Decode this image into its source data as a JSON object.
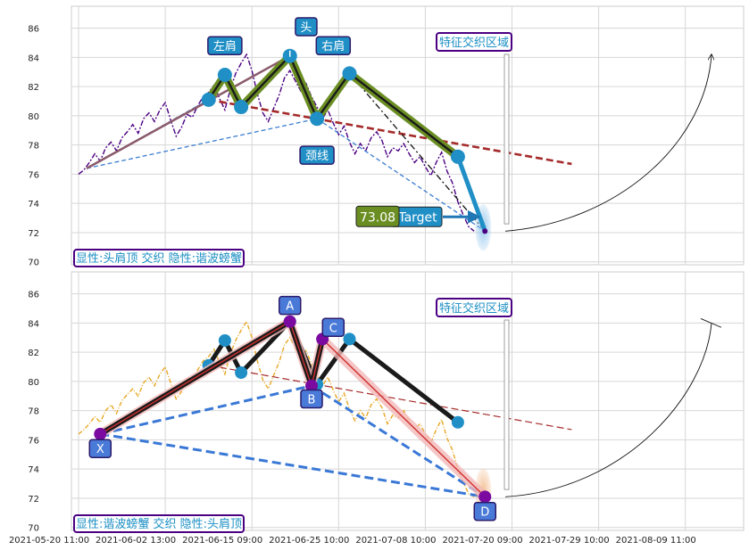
{
  "chart_data": {
    "type": "line",
    "x_ticks": [
      "2021-05-20 11:00",
      "2021-06-02 13:00",
      "2021-06-15 09:00",
      "2021-06-25 10:00",
      "2021-07-08 10:00",
      "2021-07-20 09:00",
      "2021-07-29 10:00",
      "2021-08-09 11:00"
    ],
    "y_ticks": [
      70,
      72,
      74,
      76,
      78,
      80,
      82,
      84,
      86
    ],
    "ylim": [
      69.8,
      87.5
    ],
    "grid": true,
    "panels": [
      {
        "price_color": "#4b0082",
        "price": [
          76,
          76.3,
          76.8,
          77.4,
          76.9,
          77.8,
          78.2,
          77.6,
          78.5,
          78.9,
          79.4,
          78.8,
          79.8,
          80.2,
          79.6,
          80.4,
          80.9,
          79.7,
          78.6,
          79.2,
          80.1,
          79.9,
          80.7,
          81.3,
          81.6,
          82.1,
          81.2,
          80.4,
          81.8,
          82.9,
          83.6,
          84.2,
          83.1,
          81.5,
          80.2,
          79.6,
          80.5,
          81.4,
          82.6,
          83.1,
          82.4,
          81.7,
          82.2,
          81.3,
          80.6,
          79.8,
          80.4,
          79.5,
          78.7,
          79.3,
          78.2,
          77.4,
          78.1,
          77.6,
          78.5,
          78.9,
          78.3,
          77.2,
          77.8,
          77.6,
          78.1,
          77.4,
          76.8,
          77.2,
          76.5,
          75.9,
          76.8,
          77.5,
          76.2,
          75.4,
          74.1,
          73.2,
          72.4,
          72.1
        ],
        "pattern_points": [
          [
            24,
            81.1
          ],
          [
            27,
            82.8
          ],
          [
            30,
            80.6
          ],
          [
            39,
            84.1
          ],
          [
            44,
            79.8
          ],
          [
            50,
            82.9
          ],
          [
            70,
            77.2
          ],
          [
            75,
            72.1
          ]
        ],
        "pattern_labels": [
          {
            "text": "左肩",
            "x": 27,
            "y": 84.8
          },
          {
            "text": "头",
            "x": 42,
            "y": 86.1
          },
          {
            "text": "右肩",
            "x": 47,
            "y": 84.8
          },
          {
            "text": "颈线",
            "x": 44,
            "y": 77.3
          }
        ],
        "neckline": {
          "x": [
            24,
            91
          ],
          "y": [
            81.1,
            76.7
          ]
        },
        "target_value": "73.08",
        "target_label": "Target",
        "zone_label": "特征交织区域",
        "description": "显性:头肩顶 交织 隐性:谐波螃蟹"
      },
      {
        "price_color": "#e8a825",
        "price": [
          76.4,
          76.7,
          77.1,
          77.6,
          77.2,
          78.0,
          78.4,
          77.8,
          78.7,
          79.1,
          79.5,
          79.0,
          79.9,
          80.3,
          79.7,
          80.5,
          81.0,
          79.9,
          78.8,
          79.3,
          80.2,
          80.0,
          80.8,
          81.4,
          81.7,
          82.2,
          81.3,
          80.5,
          81.9,
          82.8,
          83.5,
          84.1,
          83.0,
          81.4,
          80.1,
          79.5,
          80.4,
          81.3,
          82.5,
          83.0,
          82.3,
          81.6,
          82.1,
          81.2,
          80.5,
          79.7,
          80.3,
          79.4,
          78.6,
          79.2,
          78.1,
          77.3,
          78.0,
          77.5,
          78.4,
          78.8,
          78.2,
          77.1,
          77.7,
          77.5,
          78.0,
          77.3,
          76.7,
          77.1,
          76.4,
          75.8,
          76.7,
          77.4,
          76.1,
          75.3,
          74.0,
          73.1,
          72.3,
          72.1
        ],
        "pattern_points": [
          [
            4,
            76.4
          ],
          [
            39,
            84.1
          ],
          [
            43,
            79.7
          ],
          [
            45,
            82.9
          ],
          [
            75,
            72.1
          ]
        ],
        "pattern_labels": [
          {
            "text": "X",
            "x": 4,
            "y": 75.4
          },
          {
            "text": "A",
            "x": 39,
            "y": 85.2
          },
          {
            "text": "B",
            "x": 43,
            "y": 78.8
          },
          {
            "text": "C",
            "x": 47,
            "y": 83.7
          },
          {
            "text": "D",
            "x": 75,
            "y": 71.1
          }
        ],
        "hs_points": [
          [
            24,
            81.1
          ],
          [
            27,
            82.8
          ],
          [
            30,
            80.6
          ],
          [
            39,
            84.1
          ],
          [
            44,
            79.8
          ],
          [
            50,
            82.9
          ],
          [
            70,
            77.2
          ]
        ],
        "neckline": {
          "x": [
            24,
            91
          ],
          "y": [
            81.1,
            76.7
          ]
        },
        "zone_label": "特征交织区域",
        "description": "显性:谐波螃蟹 交织 隐性:头肩顶"
      }
    ]
  }
}
